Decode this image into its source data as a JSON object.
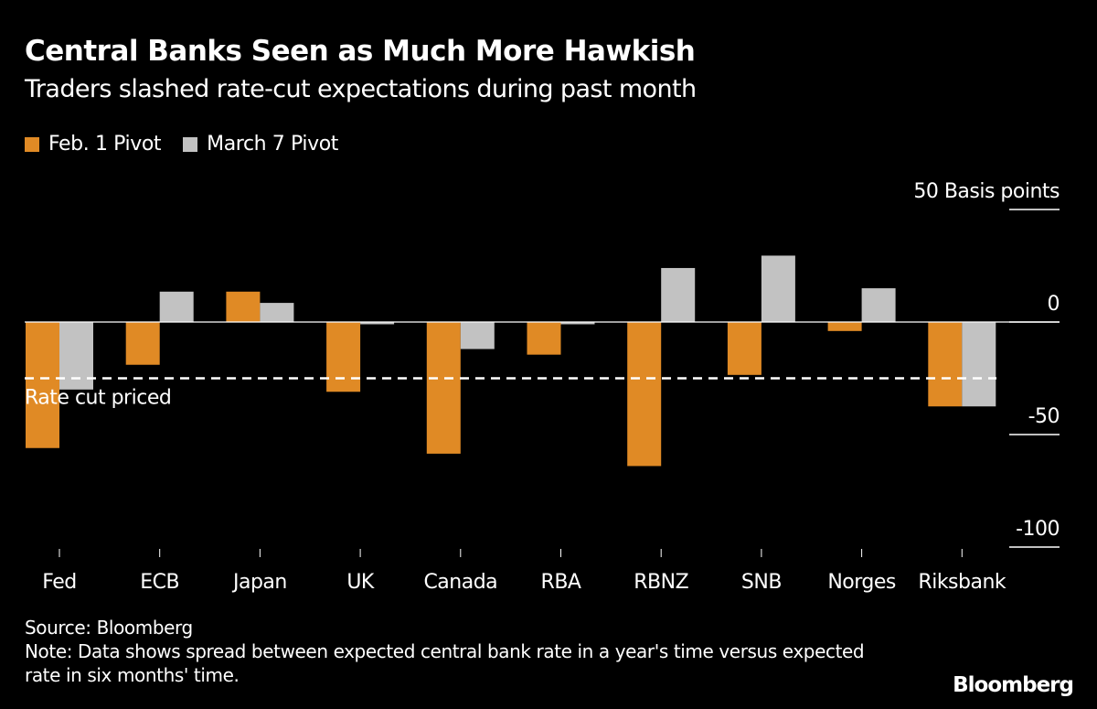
{
  "chart_data": {
    "type": "bar",
    "title": "Central Banks Seen as Much More Hawkish",
    "subtitle": "Traders slashed rate-cut expectations during past month",
    "categories": [
      "Fed",
      "ECB",
      "Japan",
      "UK",
      "Canada",
      "RBA",
      "RBNZ",
      "SNB",
      "Norges",
      "Riksbank"
    ],
    "series": [
      {
        "name": "Feb. 1 Pivot",
        "color": "#e08a25",
        "values": [
          -56,
          -19,
          13.5,
          -31,
          -58.5,
          -14.5,
          -64,
          -23.5,
          -4,
          -37.5
        ]
      },
      {
        "name": "March 7 Pivot",
        "color": "#c2c2c2",
        "values": [
          -30,
          13.5,
          8.5,
          -1,
          -12,
          -1,
          24,
          29.5,
          15,
          -37.5
        ]
      }
    ],
    "ylabel": "Basis points",
    "yticks": [
      50,
      0,
      -50,
      -100
    ],
    "ytick_labels": [
      "50",
      "0",
      "-50",
      "-100"
    ],
    "ylim": [
      -100,
      50
    ],
    "axis_position": "right",
    "legend_position": "top-left",
    "grid": false,
    "annotations": [
      {
        "text": "Rate cut priced",
        "y": -25,
        "style": "dashed"
      }
    ]
  },
  "footer": {
    "source": "Source: Bloomberg",
    "note": "Note: Data shows spread between expected central bank rate in a year's time versus expected rate in six months' time."
  },
  "brand": "Bloomberg",
  "colors": {
    "background": "#000000",
    "text": "#ffffff"
  }
}
